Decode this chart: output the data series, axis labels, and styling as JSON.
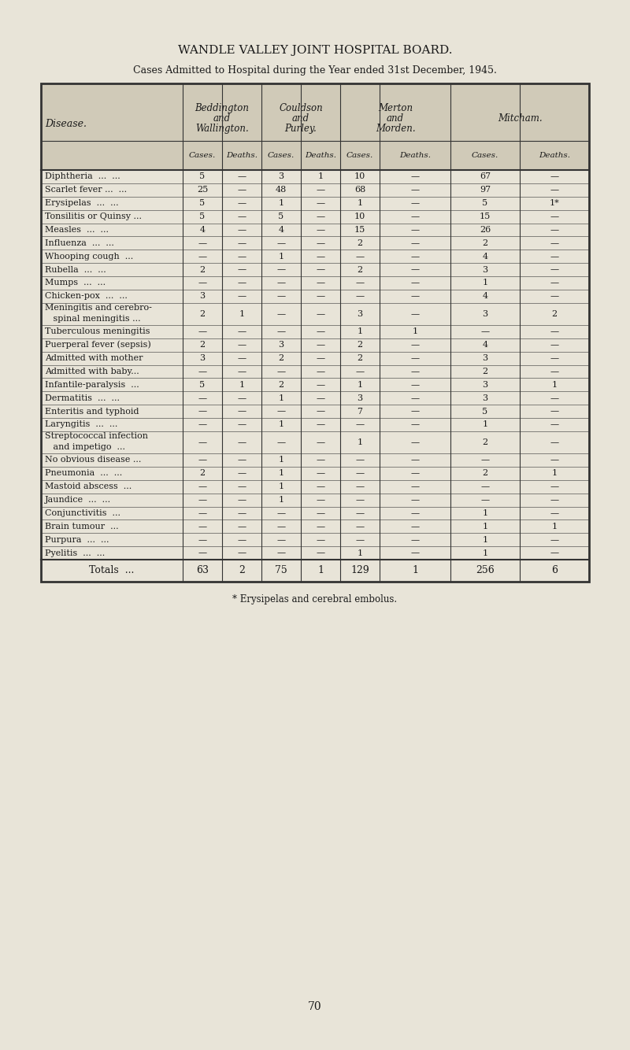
{
  "title": "WANDLE VALLEY JOINT HOSPITAL BOARD.",
  "subtitle": "Cases Admitted to Hospital during the Year ended 31st December, 1945.",
  "col_headers": [
    [
      "Disease.",
      "Beddington\nand\nWallington.",
      "Couldson\nand\nPurley.",
      "Merton\nand\nMorden.",
      "Mitcham."
    ],
    [
      "",
      "Cases.",
      "Deaths.",
      "Cases.",
      "Deaths.",
      "Cases.",
      "Deaths.",
      "Cases.",
      "Deaths."
    ]
  ],
  "rows": [
    [
      "Diphtheria  ...  ...",
      "5",
      "—",
      "3",
      "1",
      "10",
      "—",
      "67",
      "—"
    ],
    [
      "Scarlet fever ...  ...",
      "25",
      "—",
      "48",
      "—",
      "68",
      "—",
      "97",
      "—"
    ],
    [
      "Erysipelas  ...  ...",
      "5",
      "—",
      "1",
      "—",
      "1",
      "—",
      "5",
      "1*"
    ],
    [
      "Tonsilitis or Quinsy ...",
      "5",
      "—",
      "5",
      "—",
      "10",
      "—",
      "15",
      "—"
    ],
    [
      "Measles  ...  ...",
      "4",
      "—",
      "4",
      "—",
      "15",
      "—",
      "26",
      "—"
    ],
    [
      "Influenza  ...  ...",
      "—",
      "—",
      "—",
      "—",
      "2",
      "—",
      "2",
      "—"
    ],
    [
      "Whooping cough  ...",
      "—",
      "—",
      "1",
      "—",
      "—",
      "—",
      "4",
      "—"
    ],
    [
      "Rubella  ...  ...",
      "2",
      "—",
      "—",
      "—",
      "2",
      "—",
      "3",
      "—"
    ],
    [
      "Mumps  ...  ...",
      "—",
      "—",
      "—",
      "—",
      "—",
      "—",
      "1",
      "—"
    ],
    [
      "Chicken-pox  ...  ...",
      "3",
      "—",
      "—",
      "—",
      "—",
      "—",
      "4",
      "—"
    ],
    [
      "Meningitis and cerebro-\n   spinal meningitis ...",
      "2",
      "1",
      "—",
      "—",
      "3",
      "—",
      "3",
      "2"
    ],
    [
      "Tuberculous meningitis",
      "—",
      "—",
      "—",
      "—",
      "1",
      "1",
      "—",
      "—"
    ],
    [
      "Puerperal fever (sepsis)",
      "2",
      "—",
      "3",
      "—",
      "2",
      "—",
      "4",
      "—"
    ],
    [
      "Admitted with mother",
      "3",
      "—",
      "2",
      "—",
      "2",
      "—",
      "3",
      "—"
    ],
    [
      "Admitted with baby...",
      "—",
      "—",
      "—",
      "—",
      "—",
      "—",
      "2",
      "—"
    ],
    [
      "Infantile-paralysis  ...",
      "5",
      "1",
      "2",
      "—",
      "1",
      "—",
      "3",
      "1"
    ],
    [
      "Dermatitis  ...  ...",
      "—",
      "—",
      "1",
      "—",
      "3",
      "—",
      "3",
      "—"
    ],
    [
      "Enteritis and typhoid",
      "—",
      "—",
      "—",
      "—",
      "7",
      "—",
      "5",
      "—"
    ],
    [
      "Laryngitis  ...  ...",
      "—",
      "—",
      "1",
      "—",
      "—",
      "—",
      "1",
      "—"
    ],
    [
      "Streptococcal infection\n   and impetigo  ...",
      "—",
      "—",
      "—",
      "—",
      "1",
      "—",
      "2",
      "—"
    ],
    [
      "No obvious disease ...",
      "—",
      "—",
      "1",
      "—",
      "—",
      "—",
      "—",
      "—"
    ],
    [
      "Pneumonia  ...  ...",
      "2",
      "—",
      "1",
      "—",
      "—",
      "—",
      "2",
      "1"
    ],
    [
      "Mastoid abscess  ...",
      "—",
      "—",
      "1",
      "—",
      "—",
      "—",
      "—",
      "—"
    ],
    [
      "Jaundice  ...  ...",
      "—",
      "—",
      "1",
      "—",
      "—",
      "—",
      "—",
      "—"
    ],
    [
      "Conjunctivitis  ...",
      "—",
      "—",
      "—",
      "—",
      "—",
      "—",
      "1",
      "—"
    ],
    [
      "Brain tumour  ...",
      "—",
      "—",
      "—",
      "—",
      "—",
      "—",
      "1",
      "1"
    ],
    [
      "Purpura  ...  ...",
      "—",
      "—",
      "—",
      "—",
      "—",
      "—",
      "1",
      "—"
    ],
    [
      "Pyelitis  ...  ...",
      "—",
      "—",
      "—",
      "—",
      "1",
      "—",
      "1",
      "—"
    ]
  ],
  "totals_row": [
    "Totals  ...",
    "63",
    "2",
    "75",
    "1",
    "129",
    "1",
    "256",
    "6"
  ],
  "footnote": "* Erysipelas and cerebral embolus.",
  "page_number": "70",
  "bg_color": "#e8e4d8",
  "table_bg": "#ddd8c8",
  "text_color": "#1a1a1a",
  "border_color": "#333333"
}
